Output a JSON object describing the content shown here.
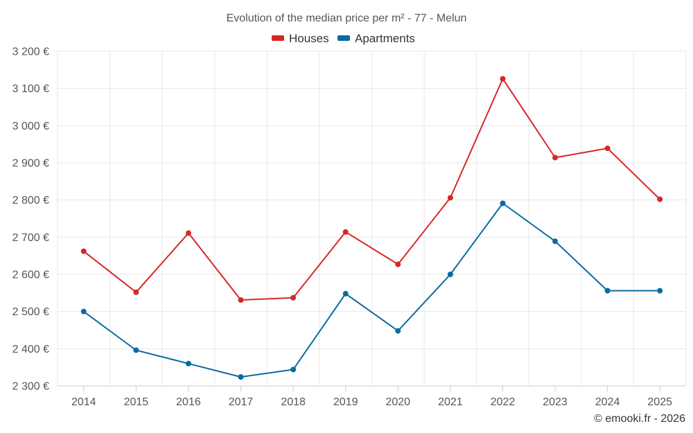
{
  "chart_data": {
    "type": "line",
    "title": "Evolution of the median price per m² - 77 - Melun",
    "categories": [
      "2014",
      "2015",
      "2016",
      "2017",
      "2018",
      "2019",
      "2020",
      "2021",
      "2022",
      "2023",
      "2024",
      "2025"
    ],
    "series": [
      {
        "name": "Houses",
        "color": "#d62728",
        "values": [
          2662,
          2552,
          2711,
          2531,
          2537,
          2714,
          2627,
          2806,
          3126,
          2914,
          2939,
          2802
        ]
      },
      {
        "name": "Apartments",
        "color": "#0b6aa2",
        "values": [
          2500,
          2396,
          2360,
          2324,
          2344,
          2548,
          2448,
          2600,
          2791,
          2689,
          2556,
          2556
        ]
      }
    ],
    "ylim": [
      2300,
      3200
    ],
    "y_ticks": [
      2300,
      2400,
      2500,
      2600,
      2700,
      2800,
      2900,
      3000,
      3100,
      3200
    ],
    "y_tick_labels": [
      "2 300 €",
      "2 400 €",
      "2 500 €",
      "2 600 €",
      "2 700 €",
      "2 800 €",
      "2 900 €",
      "3 000 €",
      "3 100 €",
      "3 200 €"
    ],
    "xlabel": "",
    "ylabel": "",
    "legend_position": "top-center",
    "grid": true
  },
  "credit": "© emooki.fr - 2026"
}
